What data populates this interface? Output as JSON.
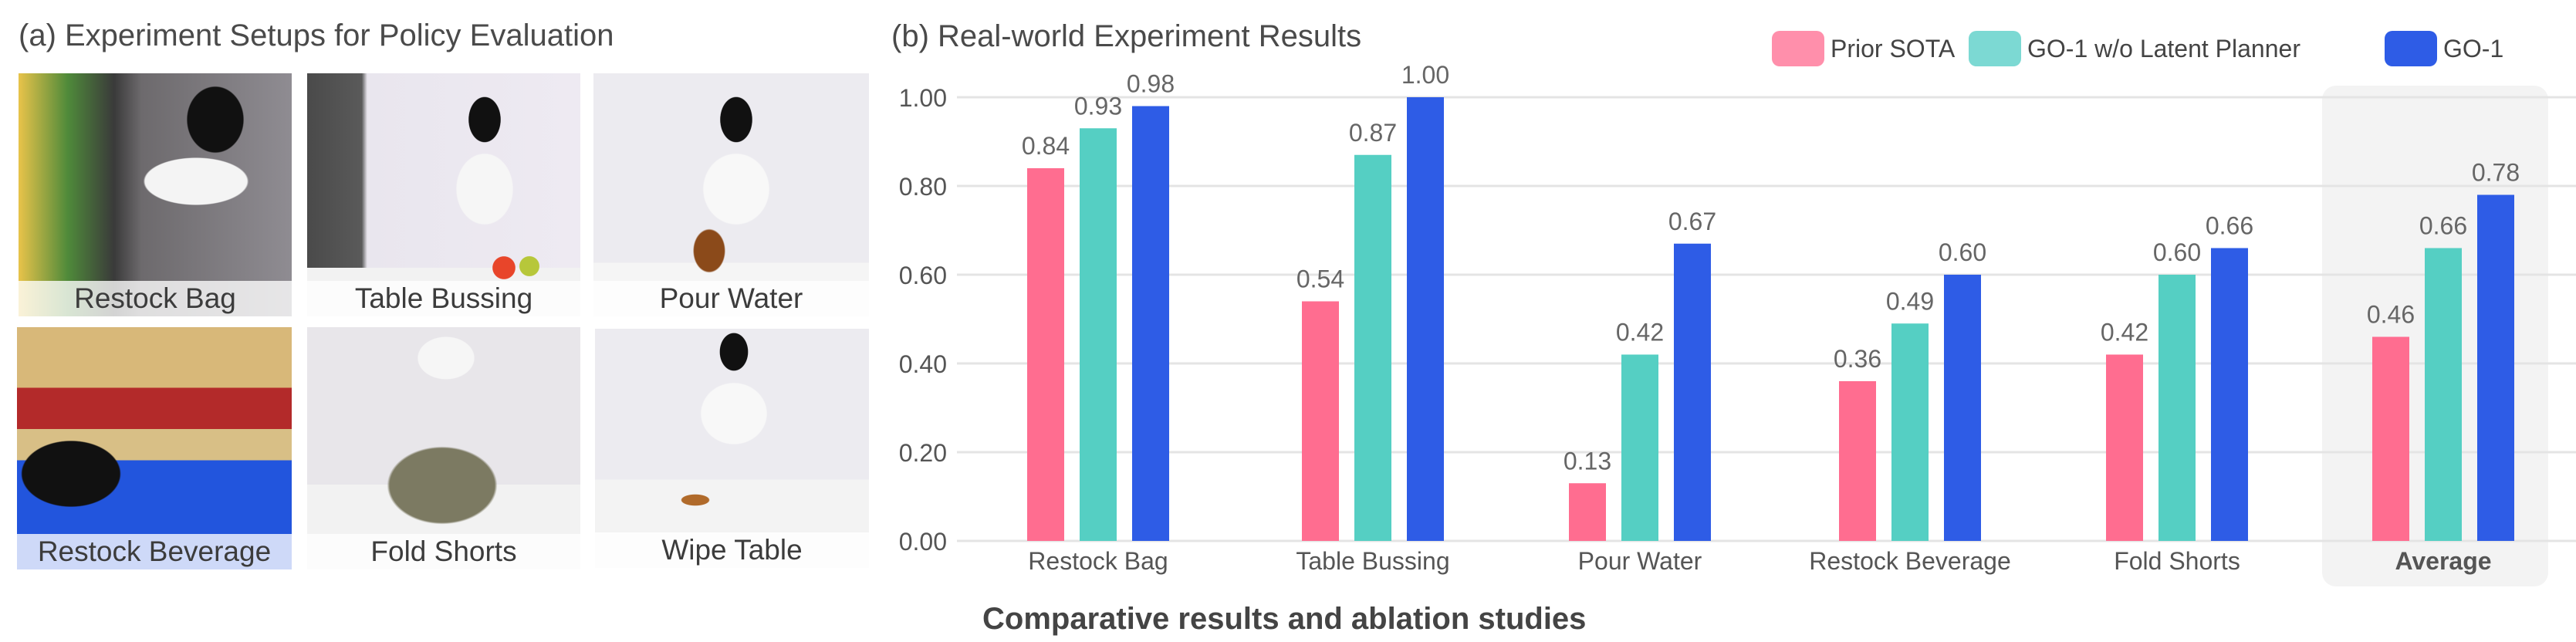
{
  "panel_a": {
    "title": "(a) Experiment Setups for Policy Evaluation",
    "photos": [
      {
        "label": "Restock Bag"
      },
      {
        "label": "Table Bussing"
      },
      {
        "label": "Pour Water"
      },
      {
        "label": "Restock Beverage"
      },
      {
        "label": "Fold Shorts"
      },
      {
        "label": "Wipe Table"
      }
    ]
  },
  "caption": "Comparative results and ablation studies",
  "chart_data": {
    "type": "bar",
    "title": "(b) Real-world Experiment Results",
    "categories": [
      "Restock Bag",
      "Table Bussing",
      "Pour Water",
      "Restock Beverage",
      "Fold Shorts",
      "Average"
    ],
    "highlighted_category": "Average",
    "series": [
      {
        "name": "Prior SOTA",
        "color": "#ff6d90",
        "values": [
          0.84,
          0.54,
          0.13,
          0.36,
          0.42,
          0.46
        ]
      },
      {
        "name": "GO-1 w/o Latent Planner",
        "color": "#55cfc3",
        "values": [
          0.93,
          0.87,
          0.42,
          0.49,
          0.6,
          0.66
        ]
      },
      {
        "name": "GO-1",
        "color": "#2e5ce6",
        "values": [
          0.98,
          1.0,
          0.67,
          0.6,
          0.66,
          0.78
        ]
      }
    ],
    "data_labels": [
      [
        "0.84",
        "0.54",
        "0.13",
        "0.36",
        "0.42",
        "0.46"
      ],
      [
        "0.93",
        "0.87",
        "0.42",
        "0.49",
        "0.60",
        "0.66"
      ],
      [
        "0.98",
        "1.00",
        "0.67",
        "0.60",
        "0.66",
        "0.78"
      ]
    ],
    "yticks": [
      "0.00",
      "0.20",
      "0.40",
      "0.60",
      "0.80",
      "1.00"
    ],
    "ylim": [
      0,
      1.0
    ],
    "xlabel": "",
    "ylabel": "",
    "grid": true,
    "legend": "top-right"
  }
}
